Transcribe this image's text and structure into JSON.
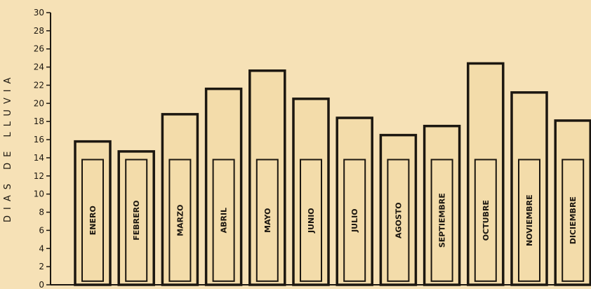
{
  "chart_data": {
    "type": "bar",
    "title": "",
    "xlabel": "",
    "ylabel": "DIAS DE LLUVIA",
    "ylim": [
      0,
      30
    ],
    "yticks": [
      0,
      2,
      4,
      6,
      8,
      10,
      12,
      14,
      16,
      18,
      20,
      22,
      24,
      26,
      28,
      30
    ],
    "grid": false,
    "categories": [
      "ENERO",
      "FEBRERO",
      "MARZO",
      "ABRIL",
      "MAYO",
      "JUNIO",
      "JULIO",
      "AGOSTO",
      "SEPTIEMBRE",
      "OCTUBRE",
      "NOVIEMBRE",
      "DICIEMBRE"
    ],
    "values": [
      15.8,
      14.7,
      18.8,
      21.6,
      23.6,
      20.5,
      18.4,
      16.5,
      17.5,
      24.4,
      21.2,
      18.1
    ],
    "colors": {
      "background": "#f6e1b6",
      "bar_fill": "#f3dcaa",
      "ink": "#1c1710"
    }
  }
}
